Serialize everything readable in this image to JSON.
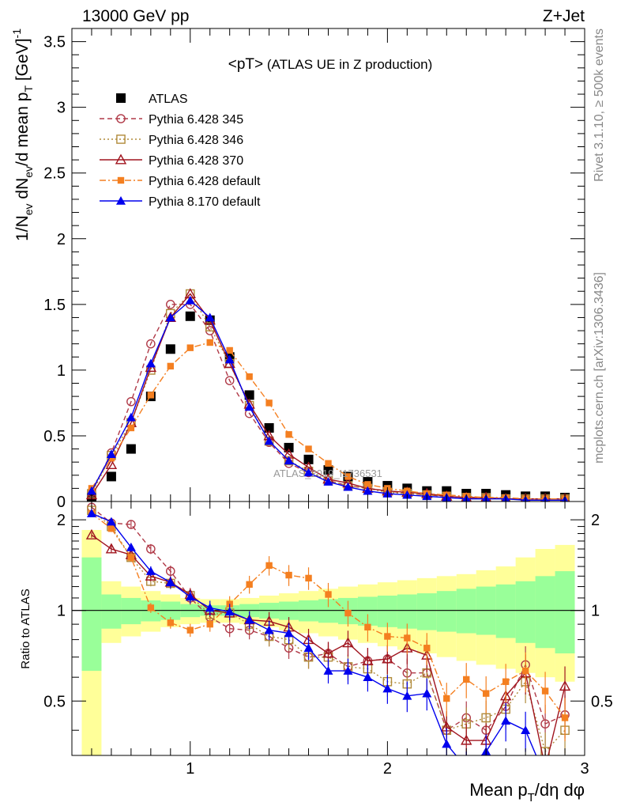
{
  "header": {
    "left": "13000 GeV pp",
    "right": "Z+Jet"
  },
  "side": {
    "rivet": "Rivet 3.1.10, ≥ 500k events",
    "mcplots": "mcplots.cern.ch [arXiv:1306.3436]"
  },
  "watermark": "ATLAS_2019_I1736531",
  "chart_data": [
    {
      "type": "scatter",
      "panel": "main",
      "title": "<pT> (ATLAS UE in Z production)",
      "ylabel_parts": [
        "1/N",
        "ev",
        " dN",
        "ev",
        "/d mean p",
        "T",
        " [GeV]",
        "-1"
      ],
      "ylim": [
        0,
        3.6
      ],
      "xlim": [
        0.4,
        3.0
      ],
      "yticks": [
        0,
        0.5,
        1,
        1.5,
        2,
        2.5,
        3,
        3.5
      ],
      "ytick_labels": [
        "0",
        "0.5",
        "1",
        "1.5",
        "2",
        "2.5",
        "3",
        "3.5"
      ],
      "legend_position": "top-left",
      "x": [
        0.5,
        0.6,
        0.7,
        0.8,
        0.9,
        1.0,
        1.1,
        1.2,
        1.3,
        1.4,
        1.5,
        1.6,
        1.7,
        1.8,
        1.9,
        2.0,
        2.1,
        2.2,
        2.3,
        2.4,
        2.5,
        2.6,
        2.7,
        2.8,
        2.9
      ],
      "series": [
        {
          "name": "ATLAS",
          "color": "#000000",
          "marker": "square-filled",
          "line": "none",
          "values": [
            0.03,
            0.19,
            0.4,
            0.8,
            1.16,
            1.41,
            1.38,
            1.1,
            0.81,
            0.56,
            0.41,
            0.32,
            0.24,
            0.19,
            0.15,
            0.12,
            0.1,
            0.08,
            0.08,
            0.06,
            0.06,
            0.05,
            0.04,
            0.04,
            0.03
          ]
        },
        {
          "name": "Pythia 6.428 345",
          "color": "#b03a48",
          "marker": "circle-open",
          "line": "dashed",
          "values": [
            0.07,
            0.37,
            0.76,
            1.2,
            1.5,
            1.5,
            1.3,
            0.92,
            0.67,
            0.45,
            0.29,
            0.22,
            0.16,
            0.12,
            0.1,
            0.08,
            0.06,
            0.05,
            0.04,
            0.03,
            0.03,
            0.02,
            0.02,
            0.02,
            0.02
          ]
        },
        {
          "name": "Pythia 6.428 346",
          "color": "#b08a3a",
          "marker": "square-open",
          "line": "dotted",
          "values": [
            0.06,
            0.35,
            0.6,
            1.0,
            1.43,
            1.58,
            1.33,
            1.05,
            0.73,
            0.46,
            0.31,
            0.23,
            0.16,
            0.12,
            0.1,
            0.07,
            0.06,
            0.05,
            0.04,
            0.03,
            0.03,
            0.02,
            0.02,
            0.02,
            0.02
          ]
        },
        {
          "name": "Pythia 6.428 370",
          "color": "#a0141e",
          "marker": "triangle-open",
          "line": "solid",
          "values": [
            0.05,
            0.28,
            0.6,
            1.02,
            1.4,
            1.58,
            1.38,
            1.05,
            0.74,
            0.5,
            0.36,
            0.26,
            0.17,
            0.14,
            0.1,
            0.08,
            0.07,
            0.06,
            0.04,
            0.03,
            0.03,
            0.02,
            0.02,
            0.02,
            0.02
          ]
        },
        {
          "name": "Pythia 6.428 default",
          "color": "#f47f20",
          "marker": "square-filled-small",
          "line": "dashdot",
          "values": [
            0.1,
            0.33,
            0.56,
            0.81,
            1.03,
            1.17,
            1.21,
            1.15,
            0.95,
            0.75,
            0.51,
            0.4,
            0.29,
            0.19,
            0.13,
            0.1,
            0.08,
            0.06,
            0.05,
            0.04,
            0.03,
            0.03,
            0.02,
            0.02,
            0.02
          ]
        },
        {
          "name": "Pythia 8.170 default",
          "color": "#0000ee",
          "marker": "triangle-filled",
          "line": "solid",
          "values": [
            0.08,
            0.36,
            0.64,
            1.05,
            1.4,
            1.53,
            1.4,
            1.08,
            0.72,
            0.46,
            0.31,
            0.22,
            0.15,
            0.11,
            0.08,
            0.06,
            0.05,
            0.04,
            0.03,
            0.02,
            0.02,
            0.02,
            0.01,
            0.01,
            0.01
          ]
        }
      ]
    },
    {
      "type": "scatter",
      "panel": "ratio",
      "ylabel": "Ratio to ATLAS",
      "xlabel_parts": [
        "Mean p",
        "T",
        "/dη dφ"
      ],
      "ylim": [
        0.33,
        2.3
      ],
      "xlim": [
        0.4,
        3.0
      ],
      "yticks": [
        0.5,
        1,
        2
      ],
      "ytick_labels": [
        "0.5",
        "1",
        "2"
      ],
      "xticks": [
        1,
        2,
        3
      ],
      "xtick_labels": [
        "1",
        "2",
        "3"
      ],
      "x": [
        0.5,
        0.6,
        0.7,
        0.8,
        0.9,
        1.0,
        1.1,
        1.2,
        1.3,
        1.4,
        1.5,
        1.6,
        1.7,
        1.8,
        1.9,
        2.0,
        2.1,
        2.2,
        2.3,
        2.4,
        2.5,
        2.6,
        2.7,
        2.8,
        2.9
      ],
      "band_outer": {
        "color": "#ffff99",
        "low": [
          0.33,
          0.78,
          0.82,
          0.85,
          0.88,
          0.9,
          0.91,
          0.91,
          0.9,
          0.88,
          0.86,
          0.84,
          0.82,
          0.8,
          0.78,
          0.76,
          0.74,
          0.72,
          0.7,
          0.68,
          0.66,
          0.64,
          0.62,
          0.6,
          0.58
        ],
        "high": [
          1.85,
          1.25,
          1.2,
          1.16,
          1.13,
          1.1,
          1.09,
          1.09,
          1.1,
          1.12,
          1.14,
          1.16,
          1.18,
          1.2,
          1.22,
          1.24,
          1.26,
          1.28,
          1.3,
          1.32,
          1.36,
          1.4,
          1.5,
          1.6,
          1.65
        ]
      },
      "band_inner": {
        "color": "#99ff99",
        "low": [
          0.63,
          0.87,
          0.9,
          0.92,
          0.93,
          0.95,
          0.96,
          0.96,
          0.95,
          0.94,
          0.93,
          0.92,
          0.91,
          0.9,
          0.89,
          0.88,
          0.87,
          0.86,
          0.85,
          0.84,
          0.83,
          0.81,
          0.78,
          0.75,
          0.72
        ],
        "high": [
          1.5,
          1.13,
          1.1,
          1.08,
          1.07,
          1.05,
          1.04,
          1.04,
          1.05,
          1.06,
          1.07,
          1.08,
          1.09,
          1.1,
          1.11,
          1.12,
          1.13,
          1.14,
          1.16,
          1.18,
          1.2,
          1.22,
          1.25,
          1.3,
          1.35
        ]
      },
      "series": [
        {
          "name": "Pythia 6.428 345",
          "values": [
            2.2,
            1.95,
            1.93,
            1.6,
            1.35,
            1.1,
            0.95,
            0.87,
            0.86,
            0.82,
            0.75,
            0.7,
            0.72,
            0.65,
            0.68,
            0.69,
            0.62,
            0.62,
            0.4,
            0.44,
            0.4,
            0.48,
            0.66,
            0.42,
            0.45
          ]
        },
        {
          "name": "Pythia 6.428 346",
          "values": [
            2.15,
            1.9,
            1.5,
            1.25,
            1.23,
            1.12,
            0.97,
            0.98,
            0.9,
            0.82,
            0.8,
            0.7,
            0.7,
            0.65,
            0.64,
            0.58,
            0.57,
            0.62,
            0.4,
            0.42,
            0.44,
            0.47,
            0.58,
            0.34,
            0.4
          ]
        },
        {
          "name": "Pythia 6.428 370",
          "values": [
            1.78,
            1.6,
            1.53,
            1.3,
            1.24,
            1.13,
            1.0,
            0.98,
            0.93,
            0.92,
            0.88,
            0.8,
            0.72,
            0.78,
            0.68,
            0.69,
            0.75,
            0.71,
            0.41,
            0.37,
            0.37,
            0.52,
            0.62,
            0.3,
            0.56
          ]
        },
        {
          "name": "Pythia 6.428 default",
          "values": [
            2.1,
            1.87,
            1.5,
            1.02,
            0.91,
            0.86,
            0.9,
            1.05,
            1.22,
            1.41,
            1.31,
            1.28,
            1.13,
            0.98,
            0.88,
            0.82,
            0.81,
            0.75,
            0.51,
            0.59,
            0.53,
            0.58,
            0.63,
            0.54,
            0.44
          ]
        },
        {
          "name": "Pythia 8.170 default",
          "values": [
            2.1,
            1.97,
            1.62,
            1.35,
            1.24,
            1.11,
            1.02,
            0.99,
            0.93,
            0.86,
            0.84,
            0.75,
            0.63,
            0.63,
            0.6,
            0.55,
            0.52,
            0.53,
            0.36,
            0.3,
            0.34,
            0.43,
            0.4,
            0.28,
            0.28
          ]
        }
      ]
    }
  ]
}
